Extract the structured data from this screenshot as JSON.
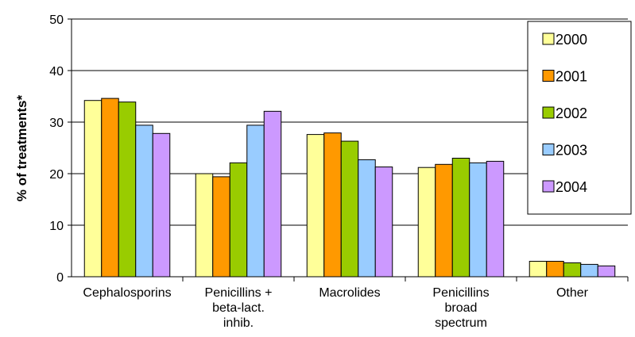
{
  "chart_data": {
    "type": "bar",
    "title": "",
    "xlabel": "",
    "ylabel": "% of treatments*",
    "ylim": [
      0,
      50
    ],
    "yticks": [
      0,
      10,
      20,
      30,
      40,
      50
    ],
    "grid": true,
    "legend_position": "right",
    "categories": [
      [
        "Cephalosporins"
      ],
      [
        "Penicillins +",
        "beta-lact.",
        "inhib."
      ],
      [
        "Macrolides"
      ],
      [
        "Penicillins",
        "broad",
        "spectrum"
      ],
      [
        "Other"
      ]
    ],
    "series": [
      {
        "name": "2000",
        "color": "#FFFF99",
        "values": [
          34.2,
          20.0,
          27.6,
          21.2,
          3.0
        ]
      },
      {
        "name": "2001",
        "color": "#FF9900",
        "values": [
          34.6,
          19.4,
          27.9,
          21.8,
          3.0
        ]
      },
      {
        "name": "2002",
        "color": "#99CC00",
        "values": [
          33.9,
          22.1,
          26.3,
          23.0,
          2.7
        ]
      },
      {
        "name": "2003",
        "color": "#99CCFF",
        "values": [
          29.4,
          29.4,
          22.7,
          22.1,
          2.4
        ]
      },
      {
        "name": "2004",
        "color": "#CC99FF",
        "values": [
          27.8,
          32.1,
          21.3,
          22.4,
          2.1
        ]
      }
    ]
  }
}
